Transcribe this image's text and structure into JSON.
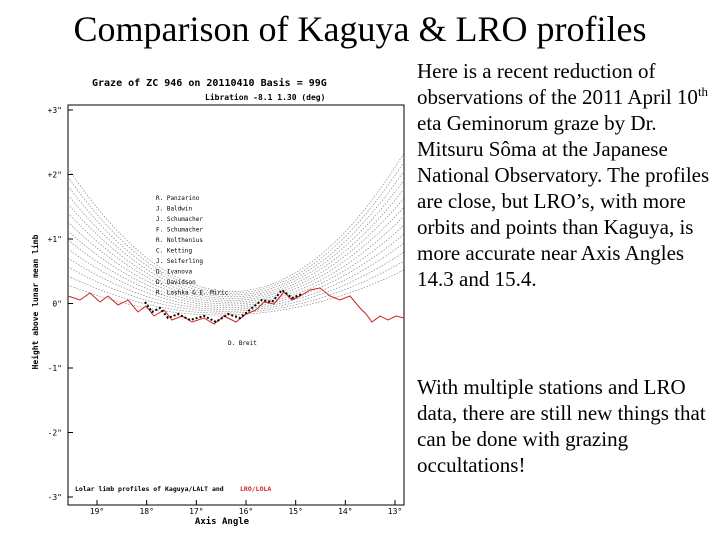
{
  "title": "Comparison of Kaguya & LRO profiles",
  "figure": {
    "header": "Graze of ZC   946 on 20110410    Basis = 99G",
    "libration": "Libration   -8.1  1.30 (deg)",
    "y_axis_label": "Height above lunar mean limb",
    "x_axis_label": "Axis Angle",
    "yticks": [
      "+3\"",
      "+2\"",
      "+1\"",
      "0\"",
      "-1\"",
      "-2\"",
      "-3\""
    ],
    "xticks": [
      "19°",
      "18°",
      "17°",
      "16°",
      "15°",
      "14°",
      "13°"
    ],
    "observers": [
      "R. Panzarino",
      "J. Baldwin",
      "J. Schumacher",
      "F. Schumacher",
      "R. Nolthenius",
      "C. Ketting",
      "J. Seiferling",
      "D. Ivanova",
      "D. Davidson",
      "R. Loshka & E. Miric"
    ],
    "footnote_observer": "D. Breit",
    "caption": "Lolar limb profiles of Kaguya/LALT and",
    "caption_red": "LRO/LOLA"
  },
  "paragraphs": [
    {
      "before": "Here is a recent reduction of observations of the 2011 April 10",
      "sup": "th",
      "after": " eta Geminorum graze by Dr. Mitsuru Sôma at the Japanese National Observatory. The profiles are close, but LRO’s, with more orbits and points than Kaguya, is more accurate near Axis Angles 14.3 and 15.4."
    },
    {
      "text": "With multiple stations and LRO data, there are still new things that can be done with grazing occultations!"
    }
  ]
}
